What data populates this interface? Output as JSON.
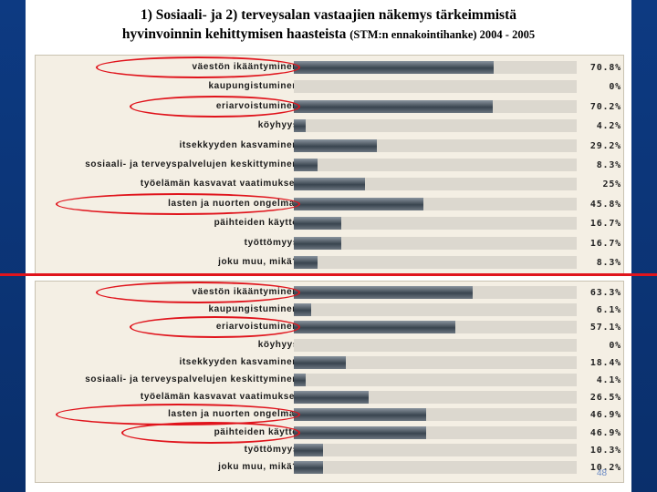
{
  "title": {
    "line1": "1) Sosiaali- ja 2) terveysalan vastaajien näkemys tärkeimmistä",
    "line2_main": "hyvinvoinnin kehittymisen haasteista ",
    "line2_small": "(STM:n ennakointihanke) 2004 - 2005"
  },
  "page_number": "48",
  "colors": {
    "accent": "#e0141c",
    "bar": "#4a5560",
    "slide_bg": "#0a2f6b"
  },
  "chart_data": [
    {
      "type": "bar",
      "orientation": "horizontal",
      "categories": [
        "väestön ikääntyminen",
        "kaupungistuminen",
        "eriarvoistuminen",
        "köyhyys",
        "itsekkyyden kasvaminen",
        "sosiaali- ja terveyspalvelujen keskittyminen",
        "työelämän kasvavat vaatimukset",
        "lasten ja nuorten ongelmat",
        "päihteiden käyttö",
        "työttömyys",
        "joku muu, mikä?"
      ],
      "values": [
        70.8,
        0,
        70.2,
        4.2,
        29.2,
        8.3,
        25,
        45.8,
        16.7,
        16.7,
        8.3
      ],
      "value_labels": [
        "70.8%",
        "0%",
        "70.2%",
        "4.2%",
        "29.2%",
        "8.3%",
        "25%",
        "45.8%",
        "16.7%",
        "16.7%",
        "8.3%"
      ],
      "highlighted": [
        "väestön ikääntyminen",
        "eriarvoistuminen",
        "lasten ja nuorten ongelmat"
      ],
      "xlim": [
        0,
        100
      ]
    },
    {
      "type": "bar",
      "orientation": "horizontal",
      "categories": [
        "väestön ikääntyminen",
        "kaupungistuminen",
        "eriarvoistuminen",
        "köyhyys",
        "itsekkyyden kasvaminen",
        "sosiaali- ja terveyspalvelujen keskittyminen",
        "työelämän kasvavat vaatimukset",
        "lasten ja nuorten ongelmat",
        "päihteiden käyttö",
        "työttömyys",
        "joku muu, mikä?"
      ],
      "values": [
        63.3,
        6.1,
        57.1,
        0,
        18.4,
        4.1,
        26.5,
        46.9,
        46.9,
        10.3,
        10.2
      ],
      "value_labels": [
        "63.3%",
        "6.1%",
        "57.1%",
        "0%",
        "18.4%",
        "4.1%",
        "26.5%",
        "46.9%",
        "46.9%",
        "10.3%",
        "10.2%"
      ],
      "highlighted": [
        "väestön ikääntyminen",
        "eriarvoistuminen",
        "lasten ja nuorten ongelmat",
        "päihteiden käyttö"
      ],
      "xlim": [
        0,
        100
      ]
    }
  ]
}
